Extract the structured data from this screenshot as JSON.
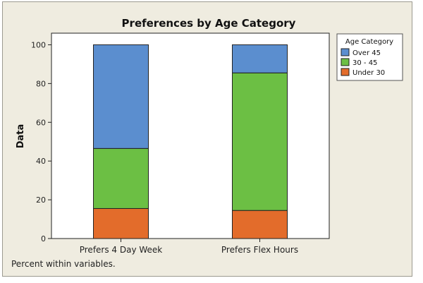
{
  "chart_data": {
    "type": "bar",
    "stacked": true,
    "title": "Preferences by Age Category",
    "xlabel": "",
    "ylabel": "Data",
    "ylim": [
      0,
      106
    ],
    "yticks": [
      0,
      20,
      40,
      60,
      80,
      100
    ],
    "categories": [
      "Prefers 4 Day Week",
      "Prefers Flex Hours"
    ],
    "series": [
      {
        "name": "Under 30",
        "color": "#e36c2b",
        "values": [
          15.5,
          14.5
        ]
      },
      {
        "name": "30 - 45",
        "color": "#6cbf44",
        "values": [
          31,
          71
        ]
      },
      {
        "name": "Over 45",
        "color": "#5b8ecf",
        "values": [
          53.5,
          14.5
        ]
      }
    ],
    "legend": {
      "title": "Age Category",
      "placement": "top-right",
      "order": [
        "Over 45",
        "30 - 45",
        "Under 30"
      ]
    },
    "footnote": "Percent within variables."
  }
}
